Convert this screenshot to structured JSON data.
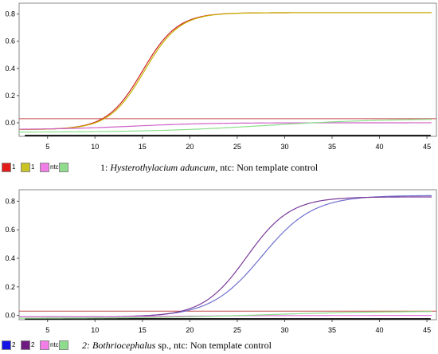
{
  "chart_data": [
    {
      "type": "line",
      "xlim": [
        2,
        46
      ],
      "ylim": [
        -0.1,
        0.88
      ],
      "xticks": [
        5,
        10,
        15,
        20,
        25,
        30,
        35,
        40,
        45
      ],
      "yticks": [
        0.0,
        0.2,
        0.4,
        0.6,
        0.8
      ],
      "ytick_labels": [
        "0.0",
        "0.2",
        "0.4",
        "0.6",
        "0.8"
      ],
      "threshold": 0.03,
      "series": [
        {
          "name": "1",
          "color": "#cc2222",
          "curve": {
            "base": -0.05,
            "top": 0.81,
            "mid": 15.0,
            "scale": 1.85
          }
        },
        {
          "name": "1",
          "color": "#c8b400",
          "curve": {
            "base": -0.05,
            "top": 0.81,
            "mid": 15.2,
            "scale": 1.85
          }
        },
        {
          "name": "ntc",
          "color": "#d060c8",
          "curve": {
            "base": -0.05,
            "top": 0.0,
            "mid": 14.0,
            "scale": 4.0
          }
        },
        {
          "name": "",
          "color": "#8adf8a",
          "curve": {
            "base": -0.07,
            "top": 0.03,
            "mid": 28.0,
            "scale": 6.0
          }
        }
      ],
      "legend": [
        {
          "label": "1",
          "color": "#e31b1b"
        },
        {
          "label": "1",
          "color": "#c9c324"
        },
        {
          "label": "ntc",
          "color": "#f07ee6"
        },
        {
          "label": "",
          "color": "#8fdc8f"
        }
      ],
      "caption": {
        "prefix": "1: ",
        "species": "Hysterothylacium aduncum",
        "suffix": ", ntc: Non template control"
      }
    },
    {
      "type": "line",
      "xlim": [
        2,
        46
      ],
      "ylim": [
        -0.03,
        0.88
      ],
      "xticks": [
        5,
        10,
        15,
        20,
        25,
        30,
        35,
        40,
        45
      ],
      "yticks": [
        0.0,
        0.2,
        0.4,
        0.6,
        0.8
      ],
      "ytick_labels": [
        "0.0",
        "0.2",
        "0.4",
        "0.6",
        "0.8"
      ],
      "threshold": 0.03,
      "series": [
        {
          "name": "2",
          "color": "#7070d0",
          "curve": {
            "base": -0.01,
            "top": 0.84,
            "mid": 27.6,
            "scale": 2.7
          }
        },
        {
          "name": "2",
          "color": "#7a3a9a",
          "curve": {
            "base": -0.01,
            "top": 0.83,
            "mid": 26.0,
            "scale": 2.3
          }
        },
        {
          "name": "ntc",
          "color": "#e07ad8",
          "curve": {
            "base": -0.01,
            "top": 0.0,
            "mid": 20.0,
            "scale": 5.0
          }
        },
        {
          "name": "",
          "color": "#8adf8a",
          "curve": {
            "base": -0.02,
            "top": 0.03,
            "mid": 28.0,
            "scale": 6.0
          }
        }
      ],
      "legend": [
        {
          "label": "2",
          "color": "#1414e6"
        },
        {
          "label": "2",
          "color": "#6e1a80"
        },
        {
          "label": "ntc",
          "color": "#f07ee6"
        },
        {
          "label": "",
          "color": "#8fdc8f"
        }
      ],
      "caption": {
        "prefix": "",
        "species": "2: Bothriocephalus",
        "suffix": " sp., ntc: Non template control"
      }
    }
  ]
}
